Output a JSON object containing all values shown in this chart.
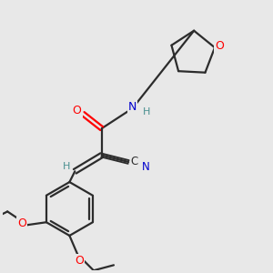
{
  "background_color": "#e8e8e8",
  "bond_color": "#2c2c2c",
  "atom_colors": {
    "O": "#ff0000",
    "N": "#0000cd",
    "C": "#2c2c2c",
    "H": "#4a9090"
  },
  "figsize": [
    3.0,
    3.0
  ],
  "dpi": 100
}
